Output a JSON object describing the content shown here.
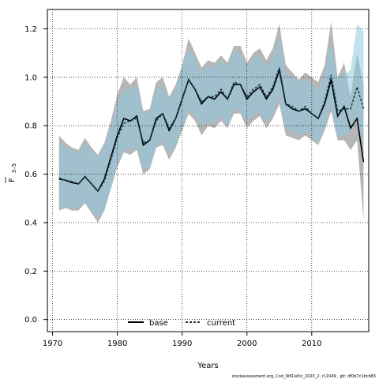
{
  "chart_data": {
    "type": "line",
    "xlabel": "Years",
    "ylabel_main": "F",
    "ylabel_sub": "3–5",
    "xlim": [
      1969.2,
      2018.8
    ],
    "ylim": [
      -0.05,
      1.28
    ],
    "xticks": [
      1970,
      1980,
      1990,
      2000,
      2010
    ],
    "yticks": [
      0.0,
      0.2,
      0.4,
      0.6,
      0.8,
      1.0,
      1.2
    ],
    "ytick_labels": [
      "0.0",
      "0.2",
      "0.4",
      "0.6",
      "0.8",
      "1.0",
      "1.2"
    ],
    "grid": "dotted",
    "legend_position": "bottom-center",
    "x": [
      1971,
      1972,
      1973,
      1974,
      1975,
      1976,
      1977,
      1978,
      1979,
      1980,
      1981,
      1982,
      1983,
      1984,
      1985,
      1986,
      1987,
      1988,
      1989,
      1990,
      1991,
      1992,
      1993,
      1994,
      1995,
      1996,
      1997,
      1998,
      1999,
      2000,
      2001,
      2002,
      2003,
      2004,
      2005,
      2006,
      2007,
      2008,
      2009,
      2010,
      2011,
      2012,
      2013,
      2014,
      2015,
      2016,
      2017,
      2018
    ],
    "series": [
      {
        "name": "base",
        "color": "#000000",
        "band_color": "#9e9e9e",
        "dash": "solid",
        "values": [
          0.58,
          0.575,
          0.565,
          0.56,
          0.59,
          0.56,
          0.53,
          0.58,
          0.67,
          0.76,
          0.83,
          0.82,
          0.84,
          0.72,
          0.74,
          0.83,
          0.85,
          0.78,
          0.83,
          0.91,
          0.99,
          0.95,
          0.89,
          0.92,
          0.91,
          0.94,
          0.91,
          0.97,
          0.97,
          0.91,
          0.94,
          0.96,
          0.91,
          0.95,
          1.03,
          0.89,
          0.87,
          0.86,
          0.87,
          0.85,
          0.83,
          0.89,
          0.99,
          0.84,
          0.88,
          0.79,
          0.83,
          0.65
        ],
        "lower": [
          0.45,
          0.46,
          0.45,
          0.45,
          0.48,
          0.44,
          0.4,
          0.45,
          0.54,
          0.63,
          0.69,
          0.68,
          0.7,
          0.6,
          0.62,
          0.71,
          0.72,
          0.66,
          0.71,
          0.78,
          0.85,
          0.82,
          0.76,
          0.8,
          0.79,
          0.82,
          0.79,
          0.85,
          0.85,
          0.79,
          0.82,
          0.84,
          0.79,
          0.83,
          0.89,
          0.76,
          0.75,
          0.74,
          0.76,
          0.74,
          0.72,
          0.78,
          0.86,
          0.74,
          0.74,
          0.7,
          0.74,
          0.41
        ],
        "upper": [
          0.76,
          0.73,
          0.71,
          0.7,
          0.75,
          0.71,
          0.68,
          0.73,
          0.82,
          0.93,
          1.0,
          0.97,
          1.0,
          0.86,
          0.87,
          0.98,
          1.0,
          0.92,
          0.97,
          1.05,
          1.16,
          1.1,
          1.04,
          1.07,
          1.06,
          1.09,
          1.06,
          1.13,
          1.13,
          1.06,
          1.1,
          1.12,
          1.07,
          1.12,
          1.22,
          1.05,
          1.02,
          0.99,
          1.02,
          1.0,
          0.98,
          1.05,
          1.23,
          1.0,
          1.06,
          0.92,
          1.1,
          0.97
        ]
      },
      {
        "name": "current",
        "color": "#1a3a4a",
        "band_color": "#8ec8e2",
        "dash": "dashed",
        "values": [
          0.585,
          0.575,
          0.57,
          0.56,
          0.59,
          0.56,
          0.53,
          0.57,
          0.66,
          0.75,
          0.81,
          0.82,
          0.83,
          0.73,
          0.74,
          0.82,
          0.85,
          0.79,
          0.83,
          0.91,
          0.99,
          0.95,
          0.9,
          0.92,
          0.92,
          0.95,
          0.91,
          0.98,
          0.97,
          0.92,
          0.95,
          0.97,
          0.92,
          0.96,
          1.04,
          0.89,
          0.88,
          0.86,
          0.88,
          0.85,
          0.83,
          0.9,
          1.01,
          0.86,
          0.87,
          0.87,
          0.96,
          0.87
        ],
        "lower": [
          0.46,
          0.465,
          0.46,
          0.455,
          0.485,
          0.45,
          0.415,
          0.455,
          0.545,
          0.64,
          0.7,
          0.7,
          0.71,
          0.62,
          0.63,
          0.71,
          0.74,
          0.68,
          0.72,
          0.8,
          0.87,
          0.84,
          0.8,
          0.82,
          0.81,
          0.84,
          0.8,
          0.87,
          0.86,
          0.82,
          0.84,
          0.86,
          0.81,
          0.85,
          0.92,
          0.78,
          0.78,
          0.76,
          0.78,
          0.75,
          0.73,
          0.79,
          0.89,
          0.75,
          0.76,
          0.77,
          0.83,
          0.72
        ],
        "upper": [
          0.73,
          0.71,
          0.7,
          0.69,
          0.73,
          0.7,
          0.67,
          0.72,
          0.8,
          0.89,
          0.95,
          0.95,
          0.97,
          0.85,
          0.86,
          0.95,
          0.97,
          0.91,
          0.95,
          1.04,
          1.12,
          1.08,
          1.02,
          1.05,
          1.04,
          1.07,
          1.04,
          1.11,
          1.1,
          1.04,
          1.08,
          1.1,
          1.04,
          1.09,
          1.17,
          1.01,
          1.0,
          0.98,
          1.0,
          0.97,
          0.95,
          1.02,
          1.15,
          1.0,
          1.01,
          1.03,
          1.22,
          1.19
        ]
      }
    ]
  },
  "footer": "stockassessment.org, Cod_WKCeltic_2020_2, r11949 , git: df0b7c1bcb83"
}
